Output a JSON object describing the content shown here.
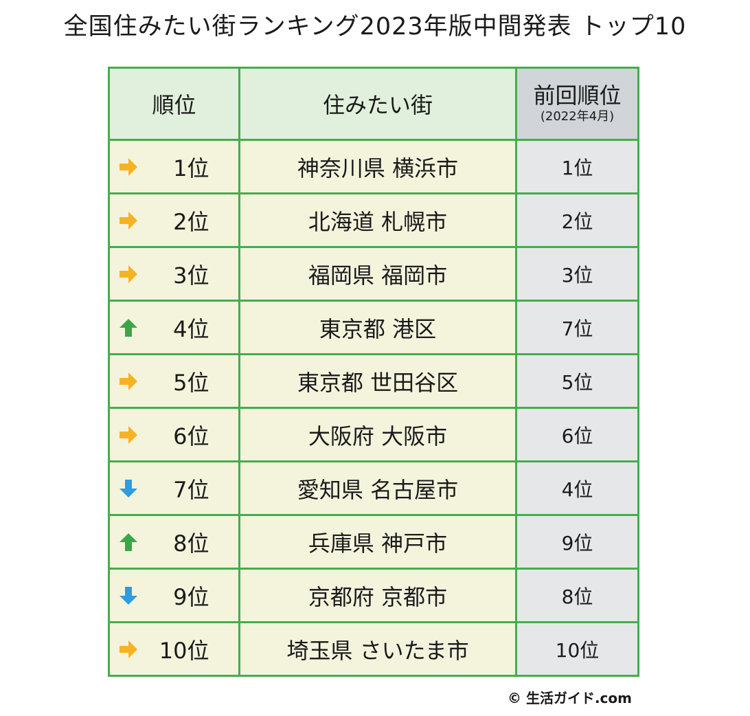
{
  "title": "全国住みたい街ランキング2023年版中間発表 トップ10",
  "table": {
    "headers": {
      "rank": "順位",
      "city": "住みたい街",
      "prev": "前回順位",
      "prev_note": "(2022年4月)"
    },
    "rows": [
      {
        "trend": "same",
        "rank": "1位",
        "city": "神奈川県 横浜市",
        "prev": "1位"
      },
      {
        "trend": "same",
        "rank": "2位",
        "city": "北海道 札幌市",
        "prev": "2位"
      },
      {
        "trend": "same",
        "rank": "3位",
        "city": "福岡県 福岡市",
        "prev": "3位"
      },
      {
        "trend": "up",
        "rank": "4位",
        "city": "東京都 港区",
        "prev": "7位"
      },
      {
        "trend": "same",
        "rank": "5位",
        "city": "東京都 世田谷区",
        "prev": "5位"
      },
      {
        "trend": "same",
        "rank": "6位",
        "city": "大阪府 大阪市",
        "prev": "6位"
      },
      {
        "trend": "down",
        "rank": "7位",
        "city": "愛知県 名古屋市",
        "prev": "4位"
      },
      {
        "trend": "up",
        "rank": "8位",
        "city": "兵庫県 神戸市",
        "prev": "9位"
      },
      {
        "trend": "down",
        "rank": "9位",
        "city": "京都府 京都市",
        "prev": "8位"
      },
      {
        "trend": "same",
        "rank": "10位",
        "city": "埼玉県 さいたま市",
        "prev": "10位"
      }
    ]
  },
  "trend_icons": {
    "same": {
      "icon": "arrow-right-icon",
      "color": "#f5b323"
    },
    "up": {
      "icon": "arrow-up-icon",
      "color": "#3aa64a"
    },
    "down": {
      "icon": "arrow-down-icon",
      "color": "#2e9ce0"
    }
  },
  "colors": {
    "border": "#43ad4c",
    "header_green": "#e1f0dc",
    "header_gray": "#d1d4d8",
    "body_cream": "#f4f4dd",
    "body_gray": "#e6e7e9"
  },
  "footer": "© 生活ガイド.com"
}
